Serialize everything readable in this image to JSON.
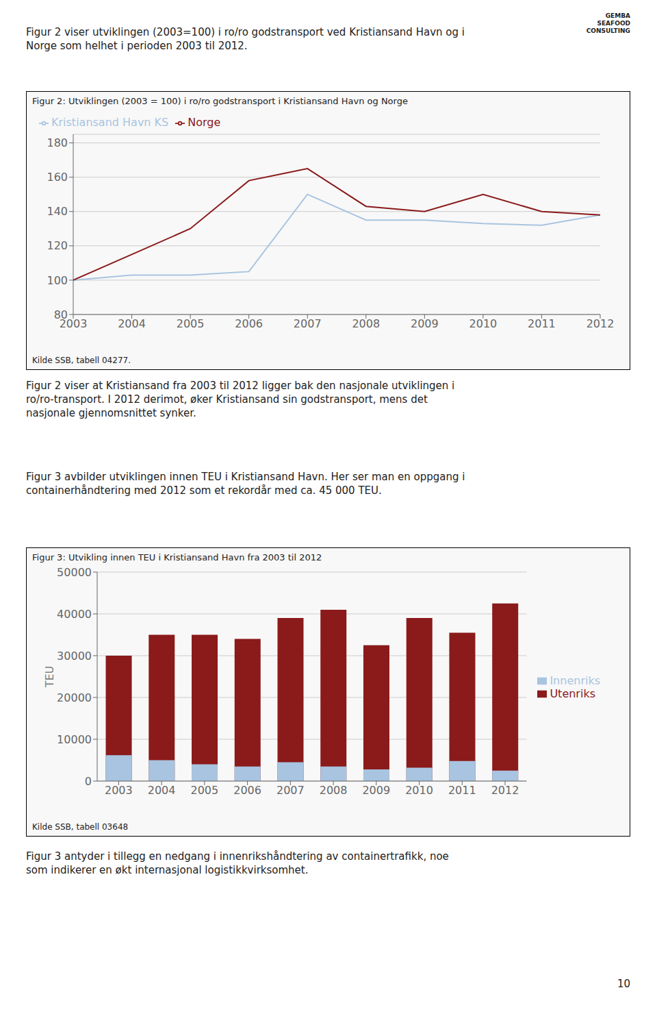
{
  "chart_data": [
    {
      "type": "line",
      "title": "Figur 2: Utviklingen (2003 = 100) i ro/ro godstransport i Kristiansand Havn og Norge",
      "annotations": [
        "Figur 2 viser utviklingen (2003=100) i ro/ro godstransport ved Kristiansand Havn og i",
        "Norge som helhet i perioden 2003 til 2012.",
        "GEMBA",
        "SEAFOOD",
        "CONSULTING",
        "Kilde SSB, tabell 04277.",
        "Figur 2 viser at Kristiansand fra 2003 til 2012 ligger bak den nasjonale utviklingen i",
        "ro/ro-transport. I 2012 derimot, øker Kristiansand sin godstransport, mens det",
        "nasjonale gjennomsnittet synker."
      ],
      "x": [
        2003,
        2004,
        2005,
        2006,
        2007,
        2008,
        2009,
        2010,
        2011,
        2012
      ],
      "xlim": [
        2003,
        2012
      ],
      "xticks": [
        2003,
        2004,
        2005,
        2006,
        2007,
        2008,
        2009,
        2010,
        2011,
        2012
      ],
      "ylim": [
        80,
        185
      ],
      "yticks": [
        80,
        100,
        120,
        140,
        160,
        180
      ],
      "grid": true,
      "legend": "upper left",
      "series": [
        {
          "name": "Kristiansand Havn KS",
          "color": "#a8c4e0",
          "values": [
            100,
            103,
            103,
            105,
            150,
            135,
            135,
            133,
            132,
            138
          ]
        },
        {
          "name": "Norge",
          "color": "#8B1A1A",
          "values": [
            100,
            115,
            130,
            158,
            165,
            143,
            140,
            150,
            140,
            138
          ]
        }
      ]
    },
    {
      "type": "bar",
      "title": "Figur 3: Utvikling innen TEU i Kristiansand Havn fra 2003 til 2012",
      "annotations": [
        "Kilde SSB, tabell 03648",
        "Figur 3 avbilder utviklingen innen TEU i Kristiansand Havn. Her ser man en oppgang i",
        "containerhåndtering med 2012 som et rekordår med ca. 45 000 TEU.",
        "Figur 3 antyder i tillegg en nedgang i innenrikshåndtering av containertrafikk, noe",
        "som indikerer en økt internasjonal logistikkvirksomhet.",
        "10"
      ],
      "categories": [
        "2003",
        "2004",
        "2005",
        "2006",
        "2007",
        "2008",
        "2009",
        "2010",
        "2011",
        "2012"
      ],
      "ylabel": "TEU",
      "ylim": [
        0,
        50000
      ],
      "yticks": [
        0,
        10000,
        20000,
        30000,
        40000,
        50000
      ],
      "grid": true,
      "legend": "right",
      "stacked": false,
      "series": [
        {
          "name": "Utenriks",
          "color": "#8B1A1A",
          "values": [
            30000,
            35000,
            35000,
            34000,
            39000,
            41000,
            32500,
            39000,
            35500,
            42500
          ]
        },
        {
          "name": "Innenriks",
          "color": "#a8c4e0",
          "values": [
            6200,
            5000,
            4000,
            3500,
            4500,
            3500,
            2800,
            3200,
            4800,
            2500
          ]
        }
      ]
    }
  ]
}
